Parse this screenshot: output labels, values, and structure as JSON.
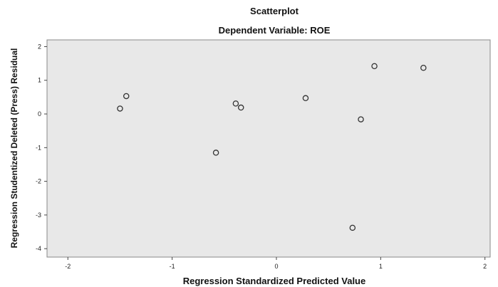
{
  "chart_data": {
    "type": "scatter",
    "title": "Scatterplot",
    "subtitle": "Dependent Variable: ROE",
    "xlabel": "Regression Standardized Predicted Value",
    "ylabel": "Regression Studentized Deleted (Press) Residual",
    "xlim": [
      -2.2,
      2.05
    ],
    "ylim": [
      -4.25,
      2.2
    ],
    "x_ticks": [
      -2,
      -1,
      0,
      1,
      2
    ],
    "y_ticks": [
      2,
      1,
      0,
      -1,
      -2,
      -3,
      -4
    ],
    "x_tick_labels": [
      "-2",
      "-1",
      "0",
      "1",
      "2"
    ],
    "y_tick_labels": [
      "2",
      "1",
      "0",
      "-1",
      "-2",
      "-3",
      "-4"
    ],
    "grid": false,
    "plot_background": "#e8e8e8",
    "marker_color": "#333333",
    "points": [
      {
        "x": -1.5,
        "y": 0.16
      },
      {
        "x": -1.44,
        "y": 0.53
      },
      {
        "x": -0.58,
        "y": -1.15
      },
      {
        "x": -0.39,
        "y": 0.31
      },
      {
        "x": -0.34,
        "y": 0.19
      },
      {
        "x": 0.28,
        "y": 0.47
      },
      {
        "x": 0.73,
        "y": -3.38
      },
      {
        "x": 0.81,
        "y": -0.16
      },
      {
        "x": 0.94,
        "y": 1.42
      },
      {
        "x": 1.41,
        "y": 1.37
      }
    ]
  }
}
